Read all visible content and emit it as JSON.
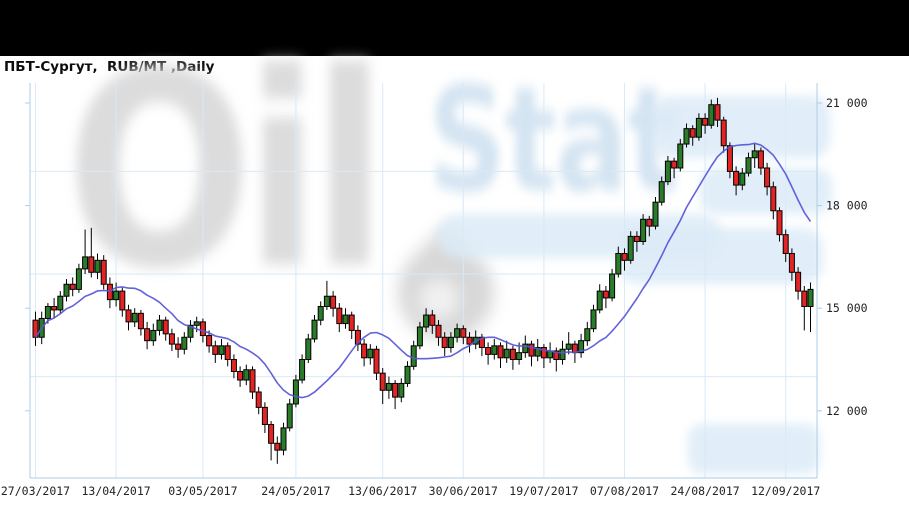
{
  "watermark": {
    "oil_text": "Oil",
    "stat_text": "Stat"
  },
  "chart_data": {
    "type": "candlestick",
    "title": "ПБТ-Сургут,  RUB/MT ,Daily",
    "symbol": "ПБТ-Сургут",
    "price_unit": "RUB/MT",
    "timeframe": "Daily",
    "y_axis": {
      "range": [
        10035,
        21585
      ],
      "ticks": [
        {
          "value": 21000,
          "label": "21 000"
        },
        {
          "value": 18000,
          "label": "18 000"
        },
        {
          "value": 15000,
          "label": "15 000"
        },
        {
          "value": 12000,
          "label": "12 000"
        }
      ],
      "gridline_values": [
        19000,
        16000,
        13000
      ]
    },
    "x_axis": {
      "ticks": [
        {
          "index": 0,
          "label": "27/03/2017"
        },
        {
          "index": 13,
          "label": "13/04/2017"
        },
        {
          "index": 27,
          "label": "03/05/2017"
        },
        {
          "index": 42,
          "label": "24/05/2017"
        },
        {
          "index": 56,
          "label": "13/06/2017"
        },
        {
          "index": 69,
          "label": "30/06/2017"
        },
        {
          "index": 82,
          "label": "19/07/2017"
        },
        {
          "index": 95,
          "label": "07/08/2017"
        },
        {
          "index": 108,
          "label": "24/08/2017"
        },
        {
          "index": 121,
          "label": "12/09/2017"
        }
      ]
    },
    "indicator": {
      "type": "moving_average",
      "window": 13,
      "color": "#5656d6"
    },
    "colors": {
      "up": "#2a7b2a",
      "down": "#e32424",
      "outline": "#000000",
      "wick": "#000000",
      "grid": "#d9e9f6",
      "axis": "#aecde6",
      "text": "#222222"
    },
    "candles": [
      [
        14650,
        14900,
        13900,
        14150
      ],
      [
        14150,
        14900,
        13950,
        14700
      ],
      [
        14700,
        15150,
        14550,
        15050
      ],
      [
        15050,
        15300,
        14700,
        14950
      ],
      [
        14950,
        15500,
        14850,
        15350
      ],
      [
        15350,
        15850,
        15200,
        15700
      ],
      [
        15700,
        15900,
        15350,
        15550
      ],
      [
        15550,
        16300,
        15450,
        16150
      ],
      [
        16150,
        17300,
        16000,
        16500
      ],
      [
        16500,
        17350,
        15900,
        16050
      ],
      [
        16050,
        16600,
        15850,
        16400
      ],
      [
        16400,
        16550,
        15550,
        15700
      ],
      [
        15700,
        15900,
        15000,
        15250
      ],
      [
        15250,
        15750,
        15050,
        15500
      ],
      [
        15500,
        15600,
        14750,
        14950
      ],
      [
        14950,
        15100,
        14350,
        14600
      ],
      [
        14600,
        15000,
        14450,
        14850
      ],
      [
        14850,
        14950,
        14200,
        14400
      ],
      [
        14400,
        14600,
        13800,
        14050
      ],
      [
        14050,
        14550,
        13900,
        14350
      ],
      [
        14350,
        14800,
        14200,
        14650
      ],
      [
        14650,
        14750,
        14050,
        14250
      ],
      [
        14250,
        14400,
        13750,
        13950
      ],
      [
        13950,
        14150,
        13550,
        13800
      ],
      [
        13800,
        14300,
        13650,
        14150
      ],
      [
        14150,
        14650,
        14000,
        14500
      ],
      [
        14500,
        14750,
        14300,
        14600
      ],
      [
        14600,
        14700,
        14000,
        14200
      ],
      [
        14200,
        14350,
        13700,
        13900
      ],
      [
        13900,
        14050,
        13400,
        13650
      ],
      [
        13650,
        14100,
        13500,
        13900
      ],
      [
        13900,
        14000,
        13300,
        13500
      ],
      [
        13500,
        13650,
        12950,
        13150
      ],
      [
        13150,
        13300,
        12700,
        12900
      ],
      [
        12900,
        13350,
        12750,
        13200
      ],
      [
        13200,
        13300,
        12350,
        12550
      ],
      [
        12550,
        12700,
        11900,
        12100
      ],
      [
        12100,
        12250,
        11350,
        11600
      ],
      [
        11600,
        11700,
        10550,
        11050
      ],
      [
        11050,
        11250,
        10450,
        10850
      ],
      [
        10850,
        11650,
        10700,
        11500
      ],
      [
        11500,
        12350,
        11400,
        12200
      ],
      [
        12200,
        13050,
        12100,
        12900
      ],
      [
        12900,
        13650,
        12800,
        13500
      ],
      [
        13500,
        14250,
        13400,
        14100
      ],
      [
        14100,
        14800,
        14000,
        14650
      ],
      [
        14650,
        15200,
        14500,
        15050
      ],
      [
        15050,
        15800,
        14950,
        15350
      ],
      [
        15350,
        15500,
        14750,
        15000
      ],
      [
        15000,
        15150,
        14300,
        14550
      ],
      [
        14550,
        15000,
        14400,
        14800
      ],
      [
        14800,
        14900,
        14100,
        14350
      ],
      [
        14350,
        14500,
        13750,
        13950
      ],
      [
        13950,
        14100,
        13300,
        13550
      ],
      [
        13550,
        13950,
        13350,
        13800
      ],
      [
        13800,
        13900,
        12900,
        13100
      ],
      [
        13100,
        13250,
        12200,
        12600
      ],
      [
        12600,
        13000,
        12350,
        12800
      ],
      [
        12800,
        12900,
        12050,
        12400
      ],
      [
        12400,
        12950,
        12250,
        12800
      ],
      [
        12800,
        13450,
        12700,
        13300
      ],
      [
        13300,
        14050,
        13200,
        13900
      ],
      [
        13900,
        14600,
        13800,
        14450
      ],
      [
        14450,
        15000,
        14300,
        14800
      ],
      [
        14800,
        14950,
        14250,
        14500
      ],
      [
        14500,
        14650,
        13900,
        14150
      ],
      [
        14150,
        14300,
        13600,
        13850
      ],
      [
        13850,
        14300,
        13700,
        14150
      ],
      [
        14150,
        14550,
        14000,
        14400
      ],
      [
        14400,
        14500,
        13950,
        14150
      ],
      [
        14150,
        14300,
        13700,
        13950
      ],
      [
        13950,
        14350,
        13800,
        14150
      ],
      [
        14150,
        14250,
        13600,
        13850
      ],
      [
        13850,
        14000,
        13350,
        13650
      ],
      [
        13650,
        14100,
        13500,
        13900
      ],
      [
        13900,
        14000,
        13250,
        13550
      ],
      [
        13550,
        14050,
        13400,
        13800
      ],
      [
        13800,
        13900,
        13200,
        13500
      ],
      [
        13500,
        14000,
        13350,
        13700
      ],
      [
        13700,
        14200,
        13550,
        13950
      ],
      [
        13950,
        14050,
        13300,
        13600
      ],
      [
        13600,
        14100,
        13450,
        13850
      ],
      [
        13850,
        13950,
        13250,
        13550
      ],
      [
        13550,
        14000,
        13400,
        13750
      ],
      [
        13750,
        13850,
        13150,
        13500
      ],
      [
        13500,
        14050,
        13350,
        13800
      ],
      [
        13800,
        14300,
        13650,
        13950
      ],
      [
        13950,
        14050,
        13400,
        13700
      ],
      [
        13700,
        14250,
        13550,
        14050
      ],
      [
        14050,
        14600,
        13900,
        14400
      ],
      [
        14400,
        15100,
        14300,
        14950
      ],
      [
        14950,
        15700,
        14850,
        15500
      ],
      [
        15500,
        15650,
        15000,
        15300
      ],
      [
        15300,
        16150,
        15200,
        16000
      ],
      [
        16000,
        16800,
        15900,
        16600
      ],
      [
        16600,
        16750,
        16100,
        16400
      ],
      [
        16400,
        17250,
        16300,
        17100
      ],
      [
        17100,
        17250,
        16650,
        16950
      ],
      [
        16950,
        17750,
        16850,
        17600
      ],
      [
        17600,
        17700,
        17100,
        17400
      ],
      [
        17400,
        18250,
        17300,
        18100
      ],
      [
        18100,
        18850,
        18000,
        18700
      ],
      [
        18700,
        19450,
        18600,
        19300
      ],
      [
        19300,
        19400,
        18800,
        19100
      ],
      [
        19100,
        19950,
        19000,
        19800
      ],
      [
        19800,
        20400,
        19700,
        20250
      ],
      [
        20250,
        20350,
        19750,
        20000
      ],
      [
        20000,
        20700,
        19900,
        20550
      ],
      [
        20550,
        20700,
        20100,
        20350
      ],
      [
        20350,
        21100,
        20250,
        20950
      ],
      [
        20950,
        21150,
        20300,
        20500
      ],
      [
        20500,
        20600,
        19550,
        19750
      ],
      [
        19750,
        19850,
        18800,
        19000
      ],
      [
        19000,
        19150,
        18300,
        18600
      ],
      [
        18600,
        19100,
        18450,
        18950
      ],
      [
        18950,
        19550,
        18850,
        19400
      ],
      [
        19400,
        19800,
        19100,
        19600
      ],
      [
        19600,
        19700,
        18900,
        19100
      ],
      [
        19100,
        19250,
        18300,
        18550
      ],
      [
        18550,
        18700,
        17600,
        17850
      ],
      [
        17850,
        17950,
        16950,
        17150
      ],
      [
        17150,
        17300,
        16350,
        16600
      ],
      [
        16600,
        16750,
        15800,
        16050
      ],
      [
        16050,
        16200,
        15250,
        15500
      ],
      [
        15500,
        15650,
        14350,
        15050
      ],
      [
        15050,
        15750,
        14300,
        15550
      ]
    ]
  }
}
